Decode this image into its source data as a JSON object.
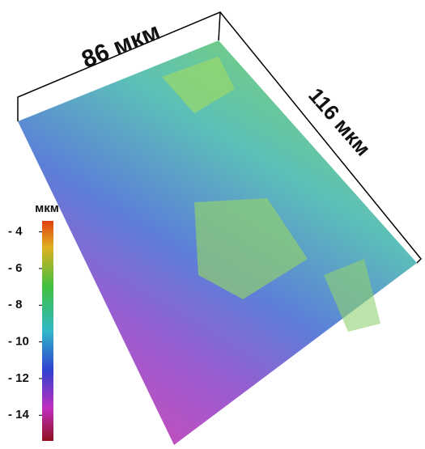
{
  "dimensions": {
    "width_label": "86 мкм",
    "length_label": "116 мкм"
  },
  "colorbar": {
    "unit": "мкм",
    "range": [
      -15.4,
      -3.4
    ],
    "ticks": [
      {
        "value": -4,
        "label": "- 4"
      },
      {
        "value": -6,
        "label": "- 6"
      },
      {
        "value": -8,
        "label": "- 8"
      },
      {
        "value": -10,
        "label": "- 10"
      },
      {
        "value": -12,
        "label": "- 12"
      },
      {
        "value": -14,
        "label": "- 14"
      }
    ]
  }
}
